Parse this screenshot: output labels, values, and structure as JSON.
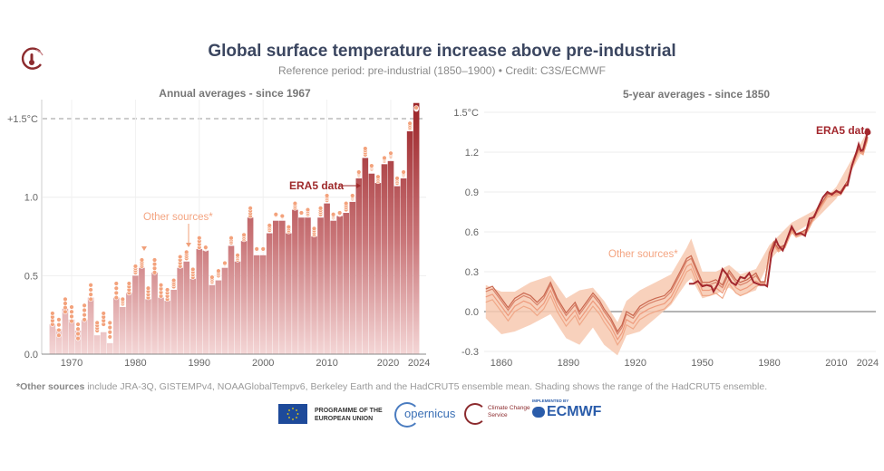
{
  "title": "Global surface temperature increase above pre-industrial",
  "subtitle": "Reference period: pre-industrial (1850–1900) • Credit: C3S/ECMWF",
  "footnote": {
    "bold": "*Other sources",
    "text": " include JRA-3Q, GISTEMPv4, NOAAGlobalTempv6, Berkeley Earth and the HadCRUT5 ensemble mean. Shading shows the range of the HadCRUT5 ensemble."
  },
  "logos": {
    "eu": "PROGRAMME OF THE EUROPEAN UNION",
    "copernicus": "opernicus",
    "c3s": "Climate Change Service",
    "ecmwf_small": "IMPLEMENTED BY",
    "ecmwf": "ECMWF"
  },
  "colors": {
    "era5": "#9e2a2b",
    "other": "#f0a07a",
    "band": "#f7c9b0",
    "title": "#3b4660"
  },
  "chart_data": [
    {
      "type": "bar",
      "title": "Annual averages - since 1967",
      "ylim": [
        0,
        1.6
      ],
      "yticks": [
        "0.0",
        "0.5",
        "1.0",
        "+1.5°C"
      ],
      "ytick_values": [
        0,
        0.5,
        1.0,
        1.5
      ],
      "xticks": [
        "1970",
        "1980",
        "1990",
        "2000",
        "2010",
        "2020",
        "2024"
      ],
      "threshold": 1.5,
      "grid": true,
      "annotations": {
        "era5": "ERA5 data",
        "other": "Other sources*"
      },
      "categories": [
        1967,
        1968,
        1969,
        1970,
        1971,
        1972,
        1973,
        1974,
        1975,
        1976,
        1977,
        1978,
        1979,
        1980,
        1981,
        1982,
        1983,
        1984,
        1985,
        1986,
        1987,
        1988,
        1989,
        1990,
        1991,
        1992,
        1993,
        1994,
        1995,
        1996,
        1997,
        1998,
        1999,
        2000,
        2001,
        2002,
        2003,
        2004,
        2005,
        2006,
        2007,
        2008,
        2009,
        2010,
        2011,
        2012,
        2013,
        2014,
        2015,
        2016,
        2017,
        2018,
        2019,
        2020,
        2021,
        2022,
        2023,
        2024
      ],
      "series": [
        {
          "name": "ERA5 data",
          "values": [
            0.19,
            0.16,
            0.29,
            0.22,
            0.15,
            0.22,
            0.36,
            0.12,
            0.14,
            0.07,
            0.36,
            0.3,
            0.39,
            0.5,
            0.55,
            0.35,
            0.52,
            0.36,
            0.34,
            0.41,
            0.55,
            0.59,
            0.48,
            0.67,
            0.66,
            0.44,
            0.47,
            0.55,
            0.69,
            0.59,
            0.72,
            0.87,
            0.63,
            0.63,
            0.77,
            0.85,
            0.85,
            0.77,
            0.92,
            0.87,
            0.87,
            0.75,
            0.87,
            0.96,
            0.85,
            0.88,
            0.9,
            0.97,
            1.12,
            1.25,
            1.15,
            1.09,
            1.21,
            1.23,
            1.07,
            1.12,
            1.42,
            1.6
          ]
        },
        {
          "name": "Other sources*",
          "ranges": [
            [
              0.19,
              0.26
            ],
            [
              0.12,
              0.22
            ],
            [
              0.27,
              0.35
            ],
            [
              0.21,
              0.3
            ],
            [
              0.1,
              0.19
            ],
            [
              0.22,
              0.31
            ],
            [
              0.35,
              0.44
            ],
            [
              0.15,
              0.2
            ],
            [
              0.19,
              0.26
            ],
            [
              0.11,
              0.2
            ],
            [
              0.36,
              0.45
            ],
            [
              0.32,
              0.35
            ],
            [
              0.39,
              0.45
            ],
            [
              0.52,
              0.56
            ],
            [
              0.56,
              0.6
            ],
            [
              0.36,
              0.42
            ],
            [
              0.52,
              0.6
            ],
            [
              0.37,
              0.44
            ],
            [
              0.35,
              0.41
            ],
            [
              0.43,
              0.47
            ],
            [
              0.56,
              0.62
            ],
            [
              0.61,
              0.65
            ],
            [
              0.49,
              0.54
            ],
            [
              0.68,
              0.74
            ],
            [
              0.67,
              0.68
            ],
            [
              0.46,
              0.49
            ],
            [
              0.5,
              0.53
            ],
            [
              0.57,
              0.58
            ],
            [
              0.71,
              0.74
            ],
            [
              0.6,
              0.63
            ],
            [
              0.73,
              0.76
            ],
            [
              0.88,
              0.93
            ],
            [
              0.66,
              0.67
            ],
            [
              0.66,
              0.67
            ],
            [
              0.79,
              0.82
            ],
            [
              0.88,
              0.89
            ],
            [
              0.87,
              0.88
            ],
            [
              0.78,
              0.81
            ],
            [
              0.93,
              0.96
            ],
            [
              0.9,
              0.9
            ],
            [
              0.89,
              0.92
            ],
            [
              0.76,
              0.8
            ],
            [
              0.89,
              0.93
            ],
            [
              0.98,
              1.01
            ],
            [
              0.87,
              0.89
            ],
            [
              0.89,
              0.9
            ],
            [
              0.92,
              0.96
            ],
            [
              0.99,
              1.01
            ],
            [
              1.14,
              1.16
            ],
            [
              1.27,
              1.31
            ],
            [
              1.18,
              1.2
            ],
            [
              1.1,
              1.13
            ],
            [
              1.23,
              1.25
            ],
            [
              1.26,
              1.28
            ],
            [
              1.09,
              1.12
            ],
            [
              1.14,
              1.16
            ],
            [
              1.44,
              1.47
            ],
            [
              1.56,
              1.57
            ]
          ]
        }
      ]
    },
    {
      "type": "line",
      "title": "5-year averages - since 1850",
      "xlim": [
        1853,
        2024
      ],
      "ylim": [
        -0.3,
        1.5
      ],
      "yticks": [
        "-0.3",
        "0.0",
        "0.3",
        "0.6",
        "0.9",
        "1.2",
        "1.5°C"
      ],
      "ytick_values": [
        -0.3,
        0,
        0.3,
        0.6,
        0.9,
        1.2,
        1.5
      ],
      "xticks": [
        "1860",
        "1890",
        "1920",
        "1950",
        "1980",
        "2010",
        "2024"
      ],
      "xtick_values": [
        1860,
        1890,
        1920,
        1950,
        1980,
        2010,
        2024
      ],
      "grid": true,
      "annotations": {
        "era5": "ERA5 data",
        "other": "Other sources*"
      },
      "series": [
        {
          "name": "Other sources*",
          "x": [
            1853,
            1856,
            1860,
            1863,
            1866,
            1870,
            1873,
            1876,
            1879,
            1882,
            1885,
            1889,
            1893,
            1895,
            1898,
            1901,
            1904,
            1906,
            1909,
            1912,
            1914,
            1916,
            1919,
            1922,
            1926,
            1929,
            1933,
            1936,
            1940,
            1943,
            1945,
            1948,
            1950,
            1953,
            1956,
            1959,
            1962,
            1965,
            1967,
            1970,
            1974,
            1976,
            1978,
            1980,
            1982,
            1984,
            1987,
            1990,
            1992,
            1995,
            1997,
            2000,
            2003,
            2006,
            2009,
            2012,
            2015,
            2017,
            2020,
            2022,
            2024
          ],
          "y": [
            0.15,
            0.17,
            0.08,
            0.01,
            0.08,
            0.12,
            0.1,
            0.05,
            0.1,
            0.2,
            0.08,
            -0.03,
            0.05,
            -0.02,
            0.05,
            0.12,
            0.06,
            0.0,
            -0.07,
            -0.17,
            -0.12,
            -0.02,
            -0.05,
            0.02,
            0.06,
            0.08,
            0.1,
            0.15,
            0.28,
            0.38,
            0.4,
            0.28,
            0.2,
            0.2,
            0.22,
            0.18,
            0.29,
            0.22,
            0.2,
            0.22,
            0.27,
            0.22,
            0.22,
            0.44,
            0.52,
            0.47,
            0.5,
            0.62,
            0.58,
            0.6,
            0.62,
            0.72,
            0.8,
            0.88,
            0.89,
            0.9,
            0.98,
            1.1,
            1.22,
            1.2,
            1.31
          ]
        },
        {
          "name": "ERA5 data",
          "x": [
            1944,
            1946,
            1948,
            1950,
            1952,
            1954,
            1955,
            1957,
            1959,
            1961,
            1963,
            1965,
            1967,
            1969,
            1971,
            1973,
            1976,
            1978,
            1979,
            1981,
            1983,
            1984,
            1986,
            1988,
            1990,
            1992,
            1994,
            1996,
            1998,
            2000,
            2002,
            2004,
            2006,
            2008,
            2010,
            2012,
            2014,
            2015,
            2017,
            2019,
            2020,
            2021,
            2022,
            2024
          ],
          "y": [
            0.21,
            0.21,
            0.23,
            0.19,
            0.2,
            0.19,
            0.15,
            0.21,
            0.32,
            0.28,
            0.22,
            0.2,
            0.26,
            0.25,
            0.29,
            0.22,
            0.2,
            0.2,
            0.19,
            0.44,
            0.54,
            0.5,
            0.46,
            0.55,
            0.64,
            0.58,
            0.59,
            0.57,
            0.7,
            0.71,
            0.79,
            0.86,
            0.9,
            0.88,
            0.91,
            0.89,
            0.95,
            0.95,
            1.1,
            1.2,
            1.26,
            1.21,
            1.22,
            1.35
          ]
        },
        {
          "name": "HadCRUT5 ensemble range",
          "x": [
            1853,
            1860,
            1866,
            1873,
            1882,
            1889,
            1895,
            1901,
            1906,
            1912,
            1916,
            1922,
            1929,
            1936,
            1943,
            1945,
            1950,
            1956,
            1962,
            1967,
            1974,
            1980,
            1990,
            2000,
            2010,
            2024
          ],
          "lower": [
            -0.05,
            -0.17,
            -0.15,
            -0.1,
            -0.02,
            -0.2,
            -0.25,
            -0.12,
            -0.25,
            -0.33,
            -0.18,
            -0.15,
            -0.05,
            0.05,
            0.22,
            0.25,
            0.1,
            0.13,
            0.18,
            0.12,
            0.16,
            0.38,
            0.58,
            0.68,
            0.85,
            1.28
          ],
          "upper": [
            0.2,
            0.15,
            0.15,
            0.22,
            0.27,
            0.1,
            0.16,
            0.18,
            0.08,
            -0.08,
            0.08,
            0.16,
            0.22,
            0.28,
            0.48,
            0.55,
            0.3,
            0.3,
            0.35,
            0.28,
            0.32,
            0.5,
            0.67,
            0.76,
            0.94,
            1.36
          ]
        }
      ]
    }
  ]
}
